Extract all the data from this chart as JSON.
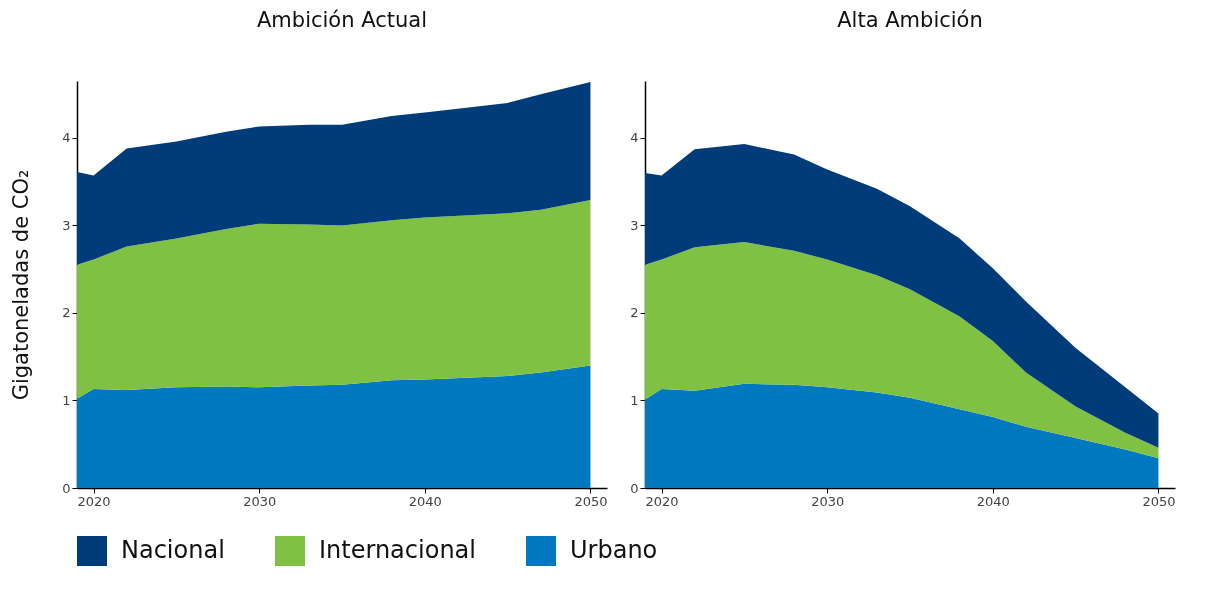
{
  "chart_data": [
    {
      "type": "area",
      "title": "Ambición Actual",
      "ylabel": "Gigatoneladas de CO₂",
      "stacked": true,
      "legend": "bottom",
      "grid": false,
      "xlim": [
        2019,
        2051
      ],
      "xticks": [
        2020,
        2030,
        2040,
        2050
      ],
      "ylim": [
        0,
        4.65
      ],
      "yticks": [
        0,
        1,
        2,
        3,
        4
      ],
      "x": [
        2019,
        2020,
        2022,
        2025,
        2028,
        2030,
        2033,
        2035,
        2038,
        2040,
        2045,
        2047,
        2050
      ],
      "series": [
        {
          "name": "Urbano",
          "color": "#0079c1",
          "values": [
            1.02,
            1.13,
            1.12,
            1.15,
            1.16,
            1.15,
            1.17,
            1.18,
            1.23,
            1.24,
            1.28,
            1.32,
            1.4
          ]
        },
        {
          "name": "Internacional",
          "color": "#80c143",
          "values": [
            1.53,
            1.48,
            1.64,
            1.7,
            1.8,
            1.87,
            1.84,
            1.82,
            1.83,
            1.85,
            1.86,
            1.86,
            1.89
          ]
        },
        {
          "name": "Nacional",
          "color": "#003b7a",
          "values": [
            1.06,
            0.96,
            1.12,
            1.11,
            1.11,
            1.11,
            1.14,
            1.15,
            1.19,
            1.2,
            1.26,
            1.32,
            1.35
          ]
        }
      ]
    },
    {
      "type": "area",
      "title": "Alta Ambición",
      "stacked": true,
      "legend": "bottom",
      "grid": false,
      "xlim": [
        2019,
        2051
      ],
      "xticks": [
        2020,
        2030,
        2040,
        2050
      ],
      "ylim": [
        0,
        4.65
      ],
      "yticks": [
        0,
        1,
        2,
        3,
        4
      ],
      "x": [
        2019,
        2020,
        2022,
        2025,
        2028,
        2030,
        2033,
        2035,
        2038,
        2040,
        2042,
        2045,
        2048,
        2050
      ],
      "series": [
        {
          "name": "Urbano",
          "color": "#0079c1",
          "values": [
            1.01,
            1.13,
            1.11,
            1.19,
            1.18,
            1.15,
            1.09,
            1.03,
            0.9,
            0.81,
            0.7,
            0.57,
            0.44,
            0.34
          ]
        },
        {
          "name": "Internacional",
          "color": "#80c143",
          "values": [
            1.54,
            1.48,
            1.64,
            1.62,
            1.53,
            1.46,
            1.34,
            1.24,
            1.06,
            0.87,
            0.62,
            0.36,
            0.19,
            0.12
          ]
        },
        {
          "name": "Nacional",
          "color": "#003b7a",
          "values": [
            1.05,
            0.96,
            1.12,
            1.12,
            1.1,
            1.03,
            0.99,
            0.95,
            0.89,
            0.83,
            0.81,
            0.67,
            0.52,
            0.39
          ]
        }
      ]
    }
  ]
}
